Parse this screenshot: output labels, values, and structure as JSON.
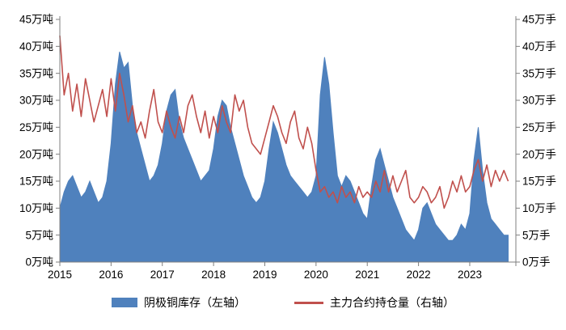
{
  "chart_data": {
    "type": "area-line-combo",
    "x_start_year": 2015,
    "x_step_years": 0.0833333,
    "x_end_year": 2023.9,
    "x_ticks": [
      "2015",
      "2016",
      "2017",
      "2018",
      "2019",
      "2020",
      "2021",
      "2022",
      "2023"
    ],
    "grid": "off",
    "legend_position": "bottom-center",
    "left_axis": {
      "min": 0,
      "max": 45,
      "tick_step": 5,
      "tick_labels": [
        "0万吨",
        "5万吨",
        "10万吨",
        "15万吨",
        "20万吨",
        "25万吨",
        "30万吨",
        "35万吨",
        "40万吨",
        "45万吨"
      ]
    },
    "right_axis": {
      "min": 0,
      "max": 45,
      "tick_step": 5,
      "tick_labels": [
        "0万手",
        "5万手",
        "10万手",
        "15万手",
        "20万手",
        "25万手",
        "30万手",
        "35万手",
        "40万手",
        "45万手"
      ]
    },
    "series": [
      {
        "name": "阴极铜库存（左轴）",
        "type": "area",
        "axis": "left",
        "color": "#4f81bd",
        "values": [
          10,
          13,
          15,
          16,
          14,
          12,
          13,
          15,
          13,
          11,
          12,
          15,
          22,
          33,
          39,
          36,
          37,
          29,
          24,
          21,
          18,
          15,
          16,
          18,
          22,
          28,
          31,
          32,
          26,
          23,
          21,
          19,
          17,
          15,
          16,
          17,
          21,
          27,
          30,
          29,
          25,
          22,
          19,
          16,
          14,
          12,
          11,
          12,
          15,
          21,
          26,
          24,
          21,
          18,
          16,
          15,
          14,
          13,
          12,
          13,
          16,
          31,
          38,
          33,
          24,
          16,
          14,
          16,
          15,
          13,
          11,
          9,
          8,
          14,
          19,
          21,
          18,
          15,
          12,
          10,
          8,
          6,
          5,
          4,
          6,
          10,
          11,
          9,
          7,
          6,
          5,
          4,
          4,
          5,
          7,
          6,
          9,
          19,
          25,
          17,
          11,
          8,
          7,
          6,
          5,
          5
        ]
      },
      {
        "name": "主力合约持仓量（右轴）",
        "type": "line",
        "axis": "right",
        "color": "#c0504d",
        "values": [
          42,
          31,
          35,
          28,
          33,
          27,
          34,
          30,
          26,
          29,
          32,
          27,
          34,
          28,
          35,
          31,
          26,
          29,
          24,
          26,
          23,
          28,
          32,
          26,
          24,
          28,
          25,
          23,
          27,
          24,
          29,
          31,
          27,
          24,
          28,
          23,
          27,
          24,
          29,
          26,
          24,
          31,
          28,
          30,
          25,
          22,
          21,
          20,
          23,
          26,
          29,
          27,
          24,
          22,
          26,
          28,
          23,
          21,
          25,
          22,
          17,
          13,
          14,
          12,
          13,
          11,
          14,
          12,
          13,
          11,
          14,
          12,
          13,
          12,
          15,
          13,
          17,
          13,
          16,
          13,
          15,
          17,
          12,
          11,
          12,
          14,
          13,
          11,
          12,
          14,
          10,
          12,
          15,
          13,
          16,
          13,
          14,
          17,
          19,
          15,
          18,
          14,
          17,
          15,
          17,
          15
        ]
      }
    ]
  },
  "legend": {
    "items": [
      {
        "label": "阴极铜库存（左轴）",
        "swatch": "area",
        "color": "#4f81bd"
      },
      {
        "label": "主力合约持仓量（右轴）",
        "swatch": "line",
        "color": "#c0504d"
      }
    ]
  },
  "colors": {
    "inventory_blue": "#4f81bd",
    "open_interest_red": "#c0504d",
    "axis_text": "#000000",
    "axis_line": "#7f7f7f"
  }
}
